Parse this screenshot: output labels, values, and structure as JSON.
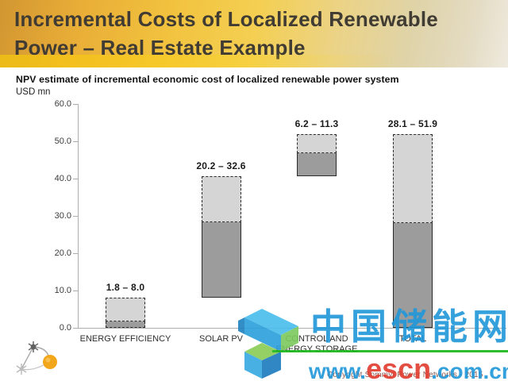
{
  "slide": {
    "title_line1": "Incremental Costs of Localized Renewable",
    "title_line2": "Power – Real Estate Example"
  },
  "chart": {
    "subtitle": "NPV estimate of incremental economic cost of localized renewable power system",
    "unit_label": "USD mn"
  },
  "chart_data": {
    "type": "bar",
    "subtype": "waterfall-range",
    "title": "NPV estimate of incremental economic cost of localized renewable power system",
    "unit": "USD mn",
    "ylim": [
      0,
      60
    ],
    "y_tick_values": [
      60,
      50,
      40,
      30,
      20,
      10,
      0
    ],
    "y_tick_labels": [
      "60.0",
      "50.0",
      "40.0",
      "30.0",
      "20.0",
      "10.0",
      "0.0"
    ],
    "grid": false,
    "legend": "none",
    "categories": [
      "ENERGY EFFICIENCY",
      "SOLAR PV",
      "CONTROL AND ENERGY STORAGE",
      "TOTAL"
    ],
    "x_tick_labels": [
      "ENERGY EFFICIENCY",
      "SOLAR PV",
      "CONTROL AND\nENERGY STORAGE",
      "TOTAL"
    ],
    "range_labels": [
      "1.8 – 8.0",
      "20.2 – 32.6",
      "6.2 – 11.3",
      "28.1 – 51.9"
    ],
    "series": [
      {
        "name": "low estimate (solid fill)",
        "values": [
          1.8,
          20.2,
          6.2,
          28.1
        ]
      },
      {
        "name": "high estimate (dashed outline)",
        "values": [
          8.0,
          32.6,
          11.3,
          51.9
        ]
      }
    ],
    "segments": [
      {
        "category": "ENERGY EFFICIENCY",
        "base": 0,
        "low_top": 1.8,
        "high_top": 8.0,
        "outline": "dashed"
      },
      {
        "category": "SOLAR PV",
        "base": 8.0,
        "low_top": 28.2,
        "high_top": 40.6,
        "outline": "solid"
      },
      {
        "category": "CONTROL AND ENERGY STORAGE",
        "base": 40.6,
        "low_top": 46.8,
        "high_top": 51.9,
        "outline": "solid"
      },
      {
        "category": "TOTAL",
        "base": 0,
        "low_top": 28.1,
        "high_top": 51.9,
        "outline": "solid"
      }
    ]
  },
  "watermark": {
    "cn_text": "中国储能网",
    "url_www": "www.",
    "url_escn": "escn",
    "url_domain": ".com.cn"
  },
  "footer": {
    "copyright": "Copyright Sommyt Power Networks - 2015"
  },
  "colors": {
    "bar_dark": "#9C9C9C",
    "bar_light": "#D5D5D5",
    "bar_border": "#2B2B2B",
    "axis": "#ADADAD",
    "watermark_blue": "#1F97DA",
    "watermark_red": "#E23B2E",
    "watermark_green": "#17B617",
    "header_gold": "#EFBE3E"
  }
}
